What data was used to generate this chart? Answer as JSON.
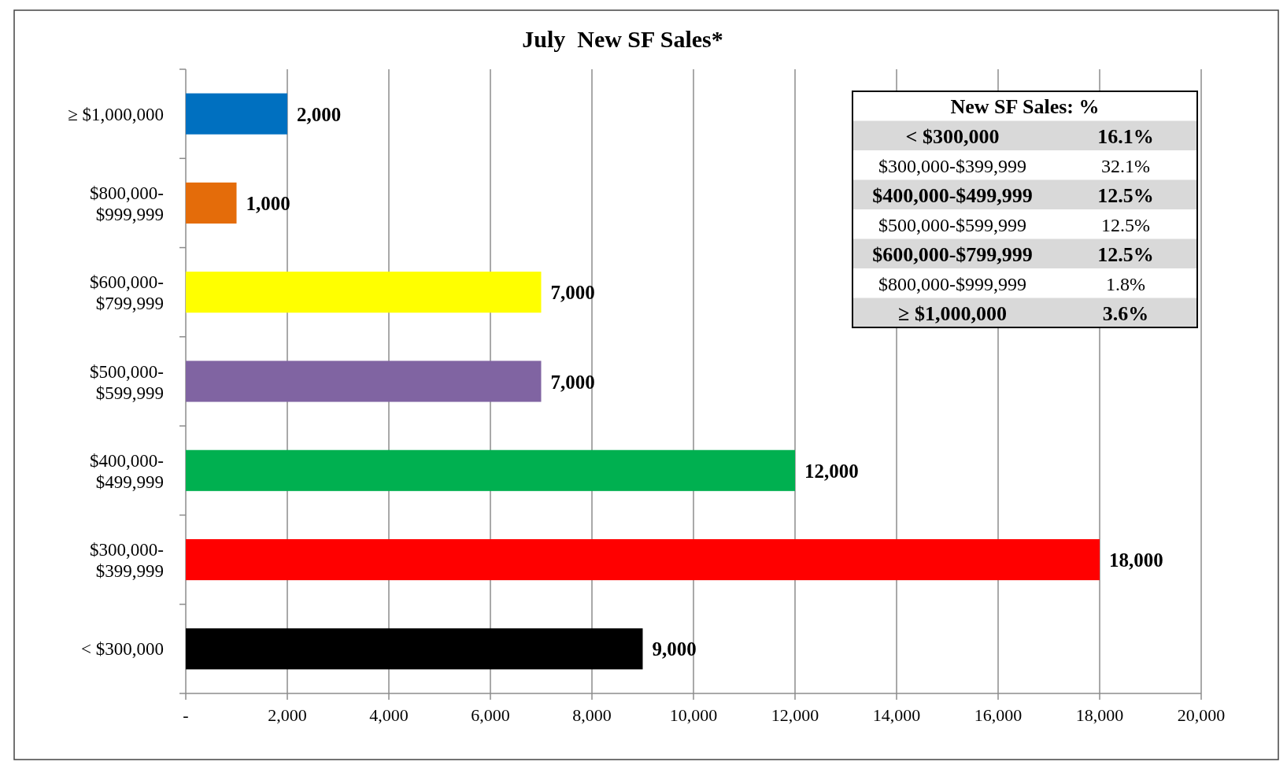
{
  "chart_data": {
    "type": "bar",
    "orientation": "horizontal",
    "title": "July  New SF Sales*",
    "categories": [
      "≥ $1,000,000",
      "$800,000-$999,999",
      "$600,000-$799,999",
      "$500,000-$599,999",
      "$400,000-$499,999",
      "$300,000-$399,999",
      "< $300,000"
    ],
    "values": [
      2000,
      1000,
      7000,
      7000,
      12000,
      18000,
      9000
    ],
    "colors": [
      "#0070c0",
      "#e46c0a",
      "#ffff00",
      "#8064a2",
      "#00b050",
      "#ff0000",
      "#000000"
    ],
    "xlim": [
      0,
      20000
    ],
    "xticks": [
      {
        "value": 0,
        "label": "-"
      },
      {
        "value": 2000,
        "label": "2,000"
      },
      {
        "value": 4000,
        "label": "4,000"
      },
      {
        "value": 6000,
        "label": "6,000"
      },
      {
        "value": 8000,
        "label": "8,000"
      },
      {
        "value": 10000,
        "label": "10,000"
      },
      {
        "value": 12000,
        "label": "12,000"
      },
      {
        "value": 14000,
        "label": "14,000"
      },
      {
        "value": 16000,
        "label": "16,000"
      },
      {
        "value": 18000,
        "label": "18,000"
      },
      {
        "value": 20000,
        "label": "20,000"
      }
    ],
    "grid": "x",
    "value_labels": [
      "2,000",
      "1,000",
      "7,000",
      "7,000",
      "12,000",
      "18,000",
      "9,000"
    ],
    "annotations": [
      "New SF Sales: %",
      "< $300,000",
      "16.1%",
      "$300,000-$399,999",
      "32.1%",
      "$400,000-$499,999",
      "12.5%",
      "$500,000-$599,999",
      "12.5%",
      "$600,000-$799,999",
      "12.5%",
      "$800,000-$999,999",
      "1.8%",
      "≥ $1,000,000",
      "3.6%"
    ]
  }
}
